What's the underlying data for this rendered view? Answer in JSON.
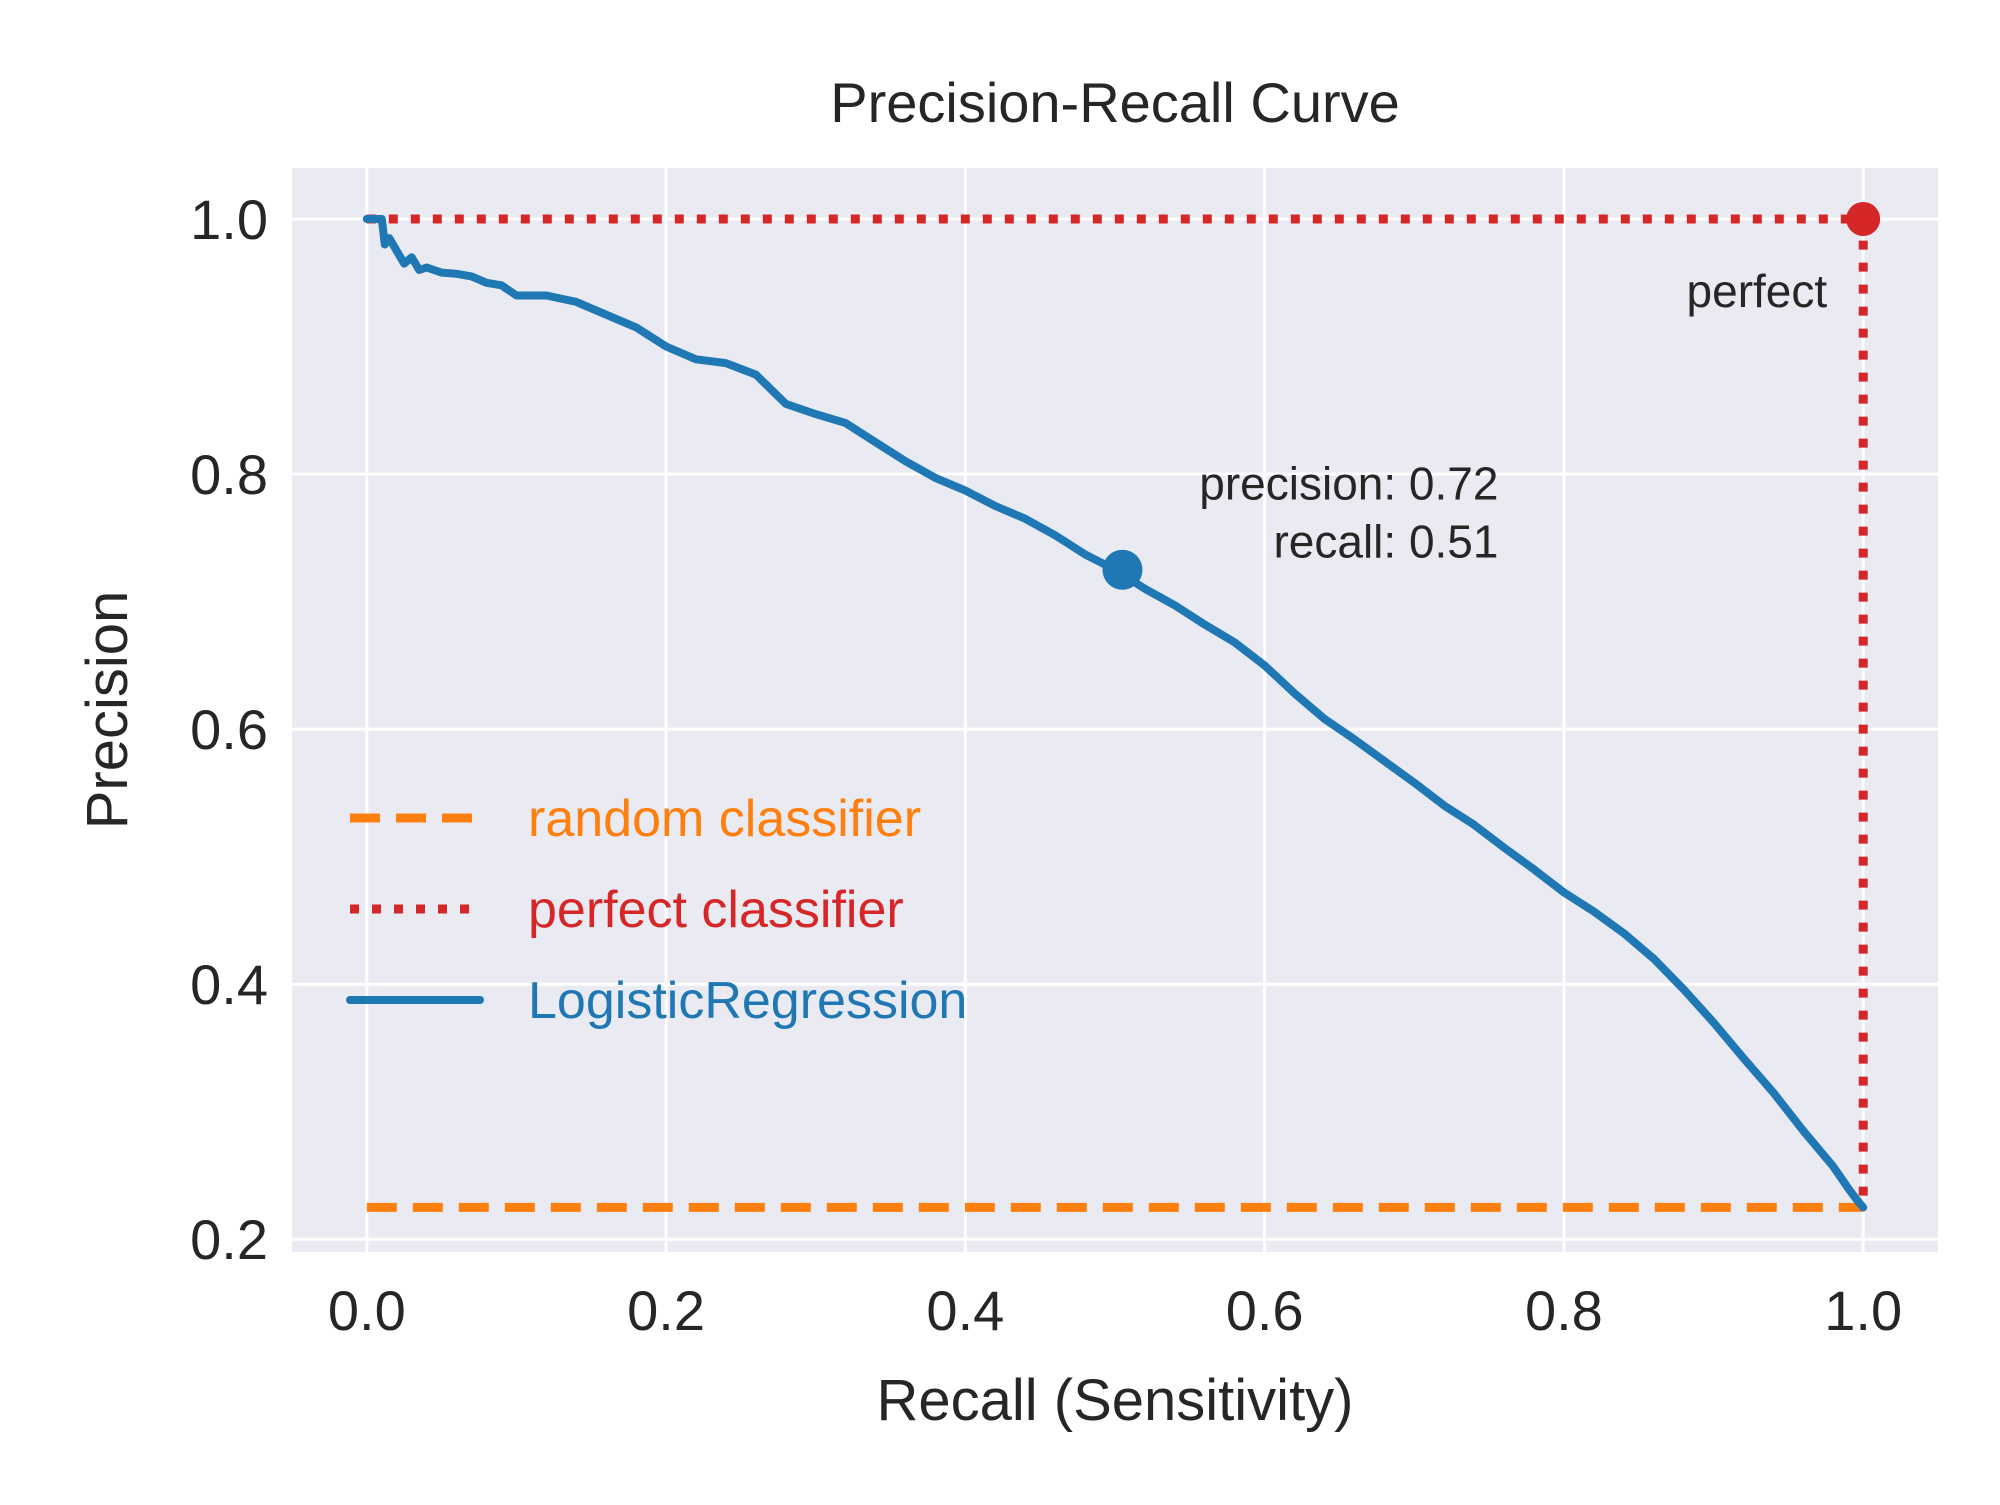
{
  "chart_data": {
    "type": "line",
    "title": "Precision-Recall Curve",
    "xlabel": "Recall (Sensitivity)",
    "ylabel": "Precision",
    "xlim": [
      -0.05,
      1.05
    ],
    "ylim": [
      0.19,
      1.04
    ],
    "xticks": [
      0.0,
      0.2,
      0.4,
      0.6,
      0.8,
      1.0
    ],
    "xtick_labels": [
      "0.0",
      "0.2",
      "0.4",
      "0.6",
      "0.8",
      "1.0"
    ],
    "yticks": [
      0.2,
      0.4,
      0.6,
      0.8,
      1.0
    ],
    "ytick_labels": [
      "0.2",
      "0.4",
      "0.6",
      "0.8",
      "1.0"
    ],
    "grid": true,
    "legend_placement": "center-left",
    "colors": {
      "background": "#EAEAF2",
      "grid": "#FFFFFF",
      "random": "#FF7F0E",
      "perfect": "#D62728",
      "model": "#1F77B4",
      "text": "#262626"
    },
    "series": [
      {
        "name": "random classifier",
        "style": "dashed",
        "color": "#FF7F0E",
        "x": [
          0.0,
          1.0
        ],
        "y": [
          0.225,
          0.225
        ]
      },
      {
        "name": "perfect classifier",
        "style": "dotted",
        "color": "#D62728",
        "x": [
          0.0,
          1.0,
          1.0
        ],
        "y": [
          1.0,
          1.0,
          0.225
        ]
      },
      {
        "name": "LogisticRegression",
        "style": "solid",
        "color": "#1F77B4",
        "x": [
          0.0,
          0.01,
          0.012,
          0.015,
          0.02,
          0.025,
          0.03,
          0.035,
          0.04,
          0.05,
          0.06,
          0.07,
          0.08,
          0.09,
          0.1,
          0.12,
          0.14,
          0.16,
          0.18,
          0.2,
          0.22,
          0.24,
          0.26,
          0.28,
          0.3,
          0.32,
          0.34,
          0.36,
          0.38,
          0.4,
          0.42,
          0.44,
          0.46,
          0.48,
          0.5,
          0.52,
          0.54,
          0.56,
          0.58,
          0.6,
          0.62,
          0.64,
          0.66,
          0.68,
          0.7,
          0.72,
          0.74,
          0.76,
          0.78,
          0.8,
          0.82,
          0.84,
          0.86,
          0.88,
          0.9,
          0.92,
          0.94,
          0.96,
          0.98,
          0.99,
          0.995,
          1.0
        ],
        "y": [
          1.0,
          1.0,
          0.98,
          0.985,
          0.975,
          0.965,
          0.97,
          0.96,
          0.962,
          0.958,
          0.957,
          0.955,
          0.95,
          0.948,
          0.94,
          0.94,
          0.935,
          0.925,
          0.915,
          0.9,
          0.89,
          0.887,
          0.878,
          0.855,
          0.847,
          0.84,
          0.825,
          0.81,
          0.797,
          0.787,
          0.775,
          0.765,
          0.752,
          0.737,
          0.725,
          0.71,
          0.697,
          0.682,
          0.668,
          0.65,
          0.628,
          0.608,
          0.592,
          0.575,
          0.558,
          0.54,
          0.525,
          0.507,
          0.49,
          0.472,
          0.457,
          0.44,
          0.42,
          0.396,
          0.37,
          0.342,
          0.315,
          0.285,
          0.257,
          0.24,
          0.232,
          0.225
        ]
      }
    ],
    "annotations": [
      {
        "name": "perfect-marker",
        "x": 1.0,
        "y": 1.0,
        "text": "perfect",
        "color": "#D62728"
      },
      {
        "name": "threshold-marker",
        "x": 0.505,
        "y": 0.725,
        "text_lines": [
          "precision: 0.72",
          "recall: 0.51"
        ],
        "color": "#1F77B4"
      }
    ]
  }
}
